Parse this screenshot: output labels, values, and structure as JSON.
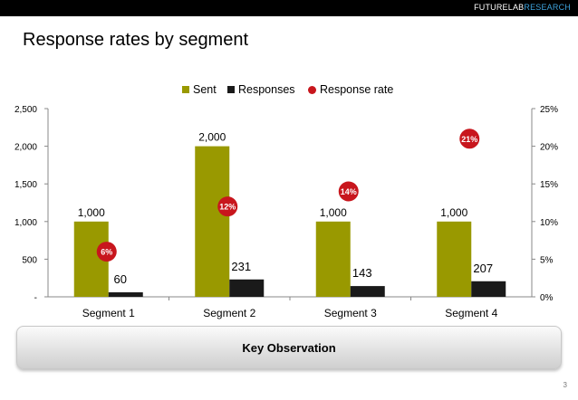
{
  "brand": {
    "part1": "FUTURELAB",
    "part2": "RESEARCH"
  },
  "title": "Response rates by segment",
  "legend": {
    "sent": "Sent",
    "responses": "Responses",
    "rate": "Response rate"
  },
  "colors": {
    "sent": "#999900",
    "responses": "#1a1a1a",
    "rate": "#c8161d",
    "brand_accent": "#3ea3dd"
  },
  "chart_data": {
    "type": "bar",
    "categories": [
      "Segment 1",
      "Segment 2",
      "Segment 3",
      "Segment 4"
    ],
    "series": [
      {
        "name": "Sent",
        "type": "bar",
        "axis": "left",
        "values": [
          1000,
          2000,
          1000,
          1000
        ],
        "labels": [
          "1,000",
          "2,000",
          "1,000",
          "1,000"
        ]
      },
      {
        "name": "Responses",
        "type": "bar",
        "axis": "left",
        "values": [
          60,
          231,
          143,
          207
        ],
        "labels": [
          "60",
          "231",
          "143",
          "207"
        ]
      },
      {
        "name": "Response rate",
        "type": "scatter",
        "axis": "right",
        "values": [
          6,
          12,
          14,
          21
        ],
        "labels": [
          "6%",
          "12%",
          "14%",
          "21%"
        ]
      }
    ],
    "y_left": {
      "range": [
        0,
        2500
      ],
      "ticks": [
        0,
        500,
        1000,
        1500,
        2000,
        2500
      ],
      "tick_labels": [
        "-",
        "500",
        "1,000",
        "1,500",
        "2,000",
        "2,500"
      ]
    },
    "y_right": {
      "range": [
        0,
        25
      ],
      "ticks": [
        0,
        5,
        10,
        15,
        20,
        25
      ],
      "tick_labels": [
        "0%",
        "5%",
        "10%",
        "15%",
        "20%",
        "25%"
      ]
    },
    "grid": false,
    "legend_position": "top"
  },
  "observation": {
    "label": "Key Observation"
  },
  "page_number": "3"
}
